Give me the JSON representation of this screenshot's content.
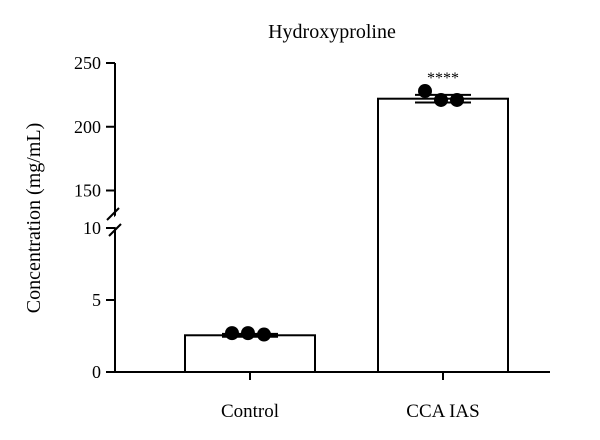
{
  "chart_data": {
    "type": "bar",
    "title": "Hydroxyproline",
    "xlabel": "",
    "ylabel": "Concentration (mg/mL)",
    "categories": [
      "Control",
      "CCA IAS"
    ],
    "values": [
      2.55,
      222
    ],
    "errors": [
      0.1,
      3
    ],
    "points": [
      [
        2.7,
        2.7,
        2.6
      ],
      [
        228,
        221,
        221
      ]
    ],
    "significance": [
      "",
      "****"
    ],
    "axis_segments": [
      {
        "range": [
          0,
          10
        ],
        "ticks": [
          0,
          5,
          10
        ]
      },
      {
        "range": [
          130,
          250
        ],
        "ticks": [
          150,
          200,
          250
        ]
      }
    ],
    "tick_labels": [
      "0",
      "5",
      "10",
      "150",
      "200",
      "250"
    ],
    "axis_break": true,
    "grid": false,
    "legend": "none",
    "colors": {
      "bar_fill": "#ffffff",
      "stroke": "#000000",
      "points": "#000000"
    }
  }
}
